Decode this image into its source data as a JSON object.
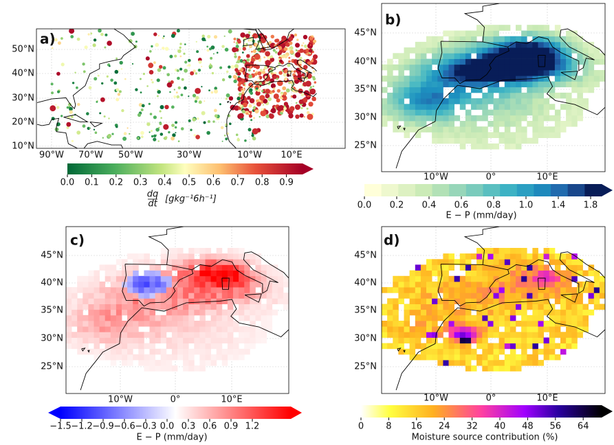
{
  "panels": [
    {
      "label": "a)",
      "lat_ticks": [
        "50°N",
        "40°N",
        "30°N",
        "20°N",
        "10°N"
      ],
      "lon_ticks": [
        "90°W",
        "70°W",
        "50°W",
        "30°W",
        "10°W",
        "10°E"
      ],
      "colorbar": {
        "ticks": [
          "0.0",
          "0.1",
          "0.2",
          "0.3",
          "0.4",
          "0.5",
          "0.6",
          "0.7",
          "0.8",
          "0.9"
        ],
        "label_numerator": "dq",
        "label_denominator": "dt",
        "label": "[gkg⁻¹6h⁻¹]"
      }
    },
    {
      "label": "b)",
      "lat_ticks": [
        "45°N",
        "40°N",
        "35°N",
        "30°N",
        "25°N"
      ],
      "lon_ticks": [
        "10°W",
        "0°",
        "10°E"
      ],
      "colorbar": {
        "ticks": [
          "0.0",
          "0.2",
          "0.4",
          "0.6",
          "0.8",
          "1.0",
          "1.4",
          "1.8"
        ],
        "label": "E − P (mm/day)"
      }
    },
    {
      "label": "c)",
      "lat_ticks": [
        "45°N",
        "40°N",
        "35°N",
        "30°N",
        "25°N"
      ],
      "lon_ticks": [
        "10°W",
        "0°",
        "10°E"
      ],
      "colorbar": {
        "ticks": [
          "−1.5",
          "−1.2",
          "−0.9",
          "−0.6",
          "−0.3",
          "0.0",
          "0.3",
          "0.6",
          "0.9",
          "1.2"
        ],
        "label": "E − P (mm/day)"
      }
    },
    {
      "label": "d)",
      "lat_ticks": [
        "45°N",
        "40°N",
        "35°N",
        "30°N",
        "25°N"
      ],
      "lon_ticks": [
        "10°W",
        "0°",
        "10°E"
      ],
      "colorbar": {
        "ticks": [
          "0",
          "8",
          "16",
          "24",
          "32",
          "40",
          "48",
          "56",
          "64"
        ],
        "label": "Moisture source contribution (%)"
      }
    }
  ]
}
